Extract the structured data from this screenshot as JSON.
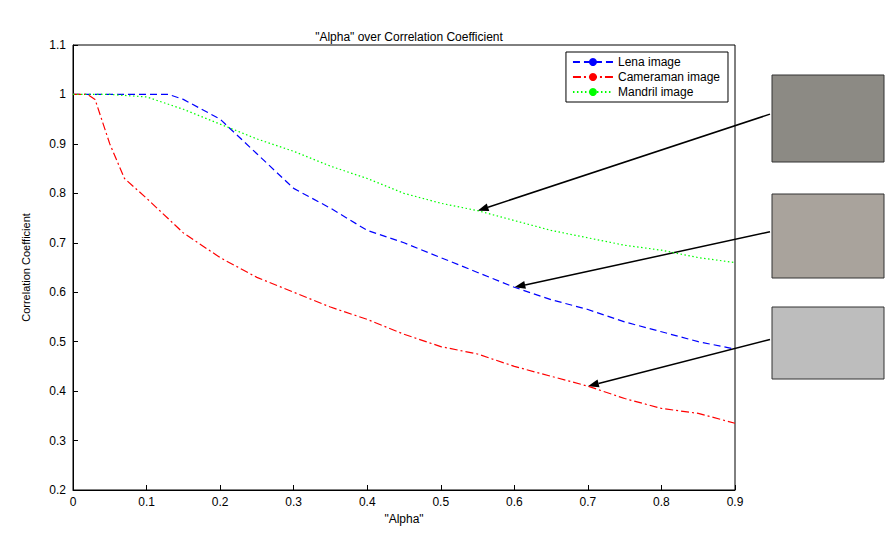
{
  "chart_data": {
    "type": "line",
    "title": "\"Alpha\" over Correlation Coefficient",
    "x_label": "\"Alpha\"",
    "y_label": "Correlation Coefficient",
    "xlim": [
      0,
      0.9
    ],
    "xticks": [
      0,
      0.1,
      0.2,
      0.3,
      0.4,
      0.5,
      0.6,
      0.7,
      0.8,
      0.9
    ],
    "ylim": [
      0.2,
      1.1
    ],
    "yticks": [
      0.2,
      0.3,
      0.4,
      0.5,
      0.6,
      0.7,
      0.8,
      0.9,
      1,
      1.1
    ],
    "grid": false,
    "legend": "upper right",
    "series": [
      {
        "name": "Lena image",
        "color": "#0000ff",
        "line_style": "dashed",
        "x": [
          0,
          0.05,
          0.1,
          0.13,
          0.15,
          0.2,
          0.25,
          0.3,
          0.35,
          0.4,
          0.45,
          0.5,
          0.55,
          0.6,
          0.65,
          0.7,
          0.75,
          0.8,
          0.85,
          0.9
        ],
        "values": [
          1,
          1,
          1,
          1,
          0.99,
          0.95,
          0.88,
          0.81,
          0.77,
          0.725,
          0.7,
          0.67,
          0.64,
          0.61,
          0.585,
          0.565,
          0.54,
          0.52,
          0.5,
          0.485
        ]
      },
      {
        "name": "Cameraman image",
        "color": "#ff0000",
        "line_style": "dashdot",
        "x": [
          0,
          0.02,
          0.03,
          0.05,
          0.07,
          0.1,
          0.15,
          0.2,
          0.25,
          0.3,
          0.35,
          0.4,
          0.45,
          0.5,
          0.55,
          0.6,
          0.65,
          0.7,
          0.75,
          0.8,
          0.85,
          0.9
        ],
        "values": [
          1,
          1,
          0.99,
          0.9,
          0.83,
          0.79,
          0.72,
          0.67,
          0.63,
          0.6,
          0.57,
          0.545,
          0.515,
          0.49,
          0.475,
          0.45,
          0.43,
          0.41,
          0.385,
          0.365,
          0.355,
          0.335
        ]
      },
      {
        "name": "Mandril image",
        "color": "#00ff00",
        "line_style": "dotted",
        "x": [
          0,
          0.05,
          0.1,
          0.15,
          0.2,
          0.25,
          0.3,
          0.35,
          0.4,
          0.45,
          0.5,
          0.55,
          0.6,
          0.65,
          0.7,
          0.75,
          0.8,
          0.85,
          0.9
        ],
        "values": [
          1,
          1,
          0.995,
          0.97,
          0.94,
          0.91,
          0.885,
          0.855,
          0.83,
          0.8,
          0.78,
          0.765,
          0.745,
          0.725,
          0.71,
          0.695,
          0.685,
          0.67,
          0.66
        ]
      }
    ]
  }
}
